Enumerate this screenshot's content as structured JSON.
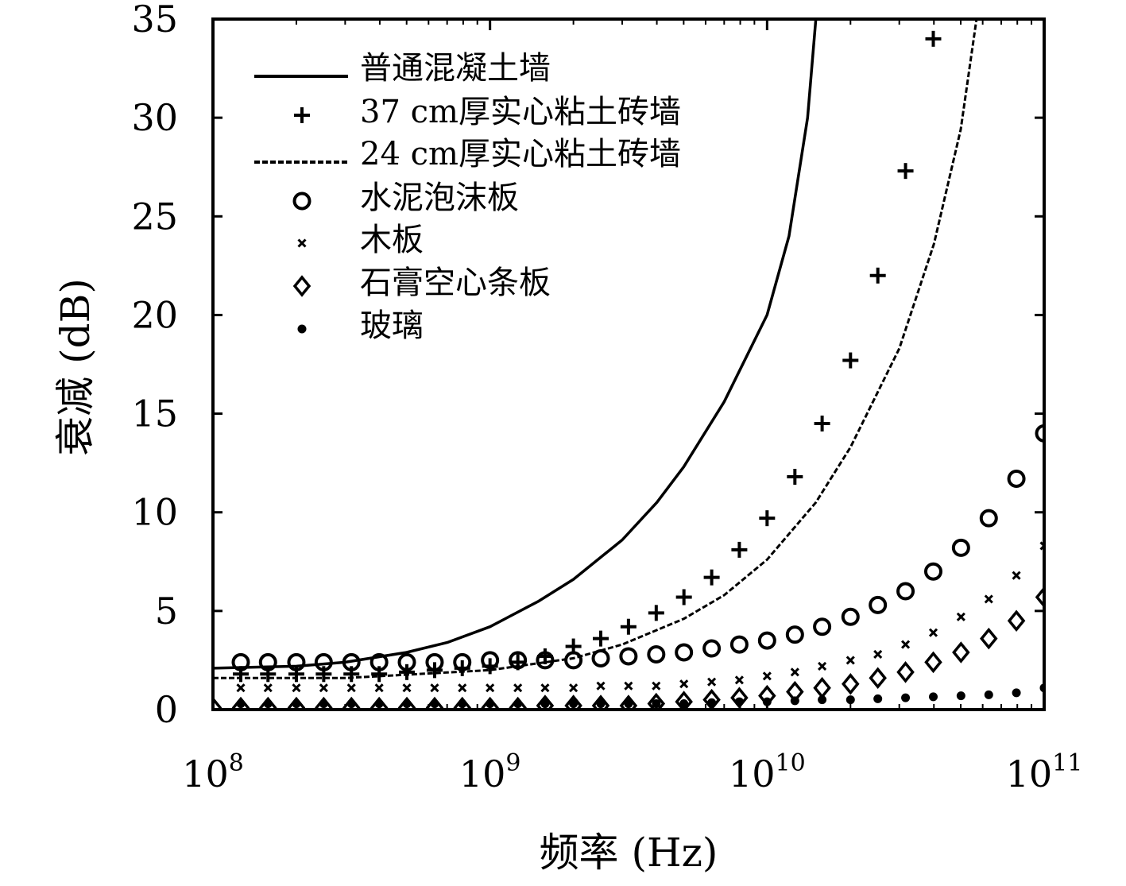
{
  "chart_data": {
    "type": "scatter",
    "xlabel": "频率 (Hz)",
    "ylabel": "衰减 (dB)",
    "xscale": "log",
    "xlim": [
      100000000.0,
      100000000000.0
    ],
    "ylim": [
      0,
      35
    ],
    "x_ticks": [
      {
        "value": 100000000.0,
        "base": "10",
        "exp": "8"
      },
      {
        "value": 1000000000.0,
        "base": "10",
        "exp": "9"
      },
      {
        "value": 10000000000.0,
        "base": "10",
        "exp": "10"
      },
      {
        "value": 100000000000.0,
        "base": "10",
        "exp": "11"
      }
    ],
    "y_ticks": [
      0,
      5,
      10,
      15,
      20,
      25,
      30,
      35
    ],
    "grid": false,
    "legend_position": "top-left",
    "series": [
      {
        "name": "普通混凝土墙",
        "marker": "solid-line",
        "points": [
          [
            100000000.0,
            2.1
          ],
          [
            200000000.0,
            2.2
          ],
          [
            300000000.0,
            2.4
          ],
          [
            500000000.0,
            2.9
          ],
          [
            700000000.0,
            3.4
          ],
          [
            1000000000.0,
            4.2
          ],
          [
            1500000000.0,
            5.5
          ],
          [
            2000000000.0,
            6.6
          ],
          [
            3000000000.0,
            8.6
          ],
          [
            4000000000.0,
            10.5
          ],
          [
            5000000000.0,
            12.3
          ],
          [
            7000000000.0,
            15.6
          ],
          [
            10000000000.0,
            20.0
          ],
          [
            12000000000.0,
            24.0
          ],
          [
            14000000000.0,
            30.0
          ],
          [
            15000000000.0,
            35.0
          ]
        ]
      },
      {
        "name": "37 cm厚实心粘土砖墙",
        "marker": "plus",
        "points": [
          [
            126000000.0,
            1.8
          ],
          [
            158000000.0,
            1.8
          ],
          [
            200000000.0,
            1.8
          ],
          [
            251000000.0,
            1.8
          ],
          [
            316000000.0,
            1.8
          ],
          [
            398000000.0,
            1.8
          ],
          [
            501000000.0,
            1.9
          ],
          [
            631000000.0,
            2.0
          ],
          [
            794000000.0,
            2.1
          ],
          [
            1000000000.0,
            2.2
          ],
          [
            1260000000.0,
            2.4
          ],
          [
            1580000000.0,
            2.7
          ],
          [
            2000000000.0,
            3.2
          ],
          [
            2510000000.0,
            3.6
          ],
          [
            3160000000.0,
            4.2
          ],
          [
            3980000000.0,
            4.9
          ],
          [
            5010000000.0,
            5.7
          ],
          [
            6310000000.0,
            6.7
          ],
          [
            7940000000.0,
            8.1
          ],
          [
            10000000000.0,
            9.7
          ],
          [
            12600000000.0,
            11.8
          ],
          [
            15800000000.0,
            14.5
          ],
          [
            20000000000.0,
            17.7
          ],
          [
            25100000000.0,
            22.0
          ],
          [
            31600000000.0,
            27.3
          ],
          [
            39800000000.0,
            34.0
          ]
        ]
      },
      {
        "name": "24 cm厚实心粘土砖墙",
        "marker": "dashed-line",
        "points": [
          [
            100000000.0,
            1.6
          ],
          [
            300000000.0,
            1.6
          ],
          [
            1000000000.0,
            2.0
          ],
          [
            2000000000.0,
            2.6
          ],
          [
            3000000000.0,
            3.3
          ],
          [
            5000000000.0,
            4.6
          ],
          [
            7000000000.0,
            5.8
          ],
          [
            10000000000.0,
            7.6
          ],
          [
            15000000000.0,
            10.5
          ],
          [
            20000000000.0,
            13.3
          ],
          [
            30000000000.0,
            18.3
          ],
          [
            40000000000.0,
            23.6
          ],
          [
            50000000000.0,
            29.4
          ],
          [
            57000000000.0,
            35.0
          ]
        ]
      },
      {
        "name": "水泥泡沫板",
        "marker": "circle",
        "points": [
          [
            126000000.0,
            2.4
          ],
          [
            158000000.0,
            2.4
          ],
          [
            200000000.0,
            2.4
          ],
          [
            251000000.0,
            2.4
          ],
          [
            316000000.0,
            2.4
          ],
          [
            398000000.0,
            2.4
          ],
          [
            501000000.0,
            2.4
          ],
          [
            631000000.0,
            2.4
          ],
          [
            794000000.0,
            2.4
          ],
          [
            1000000000.0,
            2.5
          ],
          [
            1260000000.0,
            2.5
          ],
          [
            1580000000.0,
            2.5
          ],
          [
            2000000000.0,
            2.5
          ],
          [
            2510000000.0,
            2.6
          ],
          [
            3160000000.0,
            2.7
          ],
          [
            3980000000.0,
            2.8
          ],
          [
            5010000000.0,
            2.9
          ],
          [
            6310000000.0,
            3.1
          ],
          [
            7940000000.0,
            3.3
          ],
          [
            10000000000.0,
            3.5
          ],
          [
            12600000000.0,
            3.8
          ],
          [
            15800000000.0,
            4.2
          ],
          [
            20000000000.0,
            4.7
          ],
          [
            25100000000.0,
            5.3
          ],
          [
            31600000000.0,
            6.0
          ],
          [
            39800000000.0,
            7.0
          ],
          [
            50100000000.0,
            8.2
          ],
          [
            63100000000.0,
            9.7
          ],
          [
            79400000000.0,
            11.7
          ],
          [
            100000000000.0,
            14.0
          ]
        ]
      },
      {
        "name": "木板",
        "marker": "x",
        "points": [
          [
            126000000.0,
            1.1
          ],
          [
            158000000.0,
            1.1
          ],
          [
            200000000.0,
            1.1
          ],
          [
            251000000.0,
            1.1
          ],
          [
            316000000.0,
            1.1
          ],
          [
            398000000.0,
            1.1
          ],
          [
            501000000.0,
            1.1
          ],
          [
            631000000.0,
            1.1
          ],
          [
            794000000.0,
            1.1
          ],
          [
            1000000000.0,
            1.1
          ],
          [
            1260000000.0,
            1.1
          ],
          [
            1580000000.0,
            1.1
          ],
          [
            2000000000.0,
            1.1
          ],
          [
            2510000000.0,
            1.2
          ],
          [
            3160000000.0,
            1.2
          ],
          [
            3980000000.0,
            1.2
          ],
          [
            5010000000.0,
            1.3
          ],
          [
            6310000000.0,
            1.4
          ],
          [
            7940000000.0,
            1.5
          ],
          [
            10000000000.0,
            1.7
          ],
          [
            12600000000.0,
            1.9
          ],
          [
            15800000000.0,
            2.2
          ],
          [
            20000000000.0,
            2.5
          ],
          [
            25100000000.0,
            2.8
          ],
          [
            31600000000.0,
            3.3
          ],
          [
            39800000000.0,
            3.9
          ],
          [
            50100000000.0,
            4.7
          ],
          [
            63100000000.0,
            5.6
          ],
          [
            79400000000.0,
            6.8
          ],
          [
            100000000000.0,
            8.3
          ]
        ]
      },
      {
        "name": "石膏空心条板",
        "marker": "diamond",
        "points": [
          [
            100000000.0,
            0.1
          ],
          [
            126000000.0,
            0.1
          ],
          [
            158000000.0,
            0.1
          ],
          [
            200000000.0,
            0.1
          ],
          [
            251000000.0,
            0.1
          ],
          [
            316000000.0,
            0.1
          ],
          [
            398000000.0,
            0.1
          ],
          [
            501000000.0,
            0.1
          ],
          [
            631000000.0,
            0.1
          ],
          [
            794000000.0,
            0.1
          ],
          [
            1000000000.0,
            0.1
          ],
          [
            1260000000.0,
            0.1
          ],
          [
            1580000000.0,
            0.2
          ],
          [
            2000000000.0,
            0.2
          ],
          [
            2510000000.0,
            0.2
          ],
          [
            3160000000.0,
            0.2
          ],
          [
            3980000000.0,
            0.3
          ],
          [
            5010000000.0,
            0.4
          ],
          [
            6310000000.0,
            0.5
          ],
          [
            7940000000.0,
            0.6
          ],
          [
            10000000000.0,
            0.7
          ],
          [
            12600000000.0,
            0.9
          ],
          [
            15800000000.0,
            1.1
          ],
          [
            20000000000.0,
            1.3
          ],
          [
            25100000000.0,
            1.6
          ],
          [
            31600000000.0,
            1.9
          ],
          [
            39800000000.0,
            2.4
          ],
          [
            50100000000.0,
            2.9
          ],
          [
            63100000000.0,
            3.6
          ],
          [
            79400000000.0,
            4.5
          ],
          [
            100000000000.0,
            5.7
          ]
        ]
      },
      {
        "name": "玻璃",
        "marker": "dot",
        "points": [
          [
            126000000.0,
            0.3
          ],
          [
            158000000.0,
            0.3
          ],
          [
            200000000.0,
            0.3
          ],
          [
            251000000.0,
            0.3
          ],
          [
            316000000.0,
            0.3
          ],
          [
            398000000.0,
            0.3
          ],
          [
            501000000.0,
            0.3
          ],
          [
            631000000.0,
            0.3
          ],
          [
            794000000.0,
            0.3
          ],
          [
            1000000000.0,
            0.3
          ],
          [
            1260000000.0,
            0.3
          ],
          [
            1580000000.0,
            0.3
          ],
          [
            2000000000.0,
            0.3
          ],
          [
            2510000000.0,
            0.3
          ],
          [
            3160000000.0,
            0.3
          ],
          [
            3980000000.0,
            0.3
          ],
          [
            5010000000.0,
            0.3
          ],
          [
            6310000000.0,
            0.35
          ],
          [
            7940000000.0,
            0.4
          ],
          [
            10000000000.0,
            0.4
          ],
          [
            12600000000.0,
            0.45
          ],
          [
            15800000000.0,
            0.5
          ],
          [
            20000000000.0,
            0.5
          ],
          [
            25100000000.0,
            0.55
          ],
          [
            31600000000.0,
            0.6
          ],
          [
            39800000000.0,
            0.65
          ],
          [
            50100000000.0,
            0.7
          ],
          [
            63100000000.0,
            0.75
          ],
          [
            79400000000.0,
            0.85
          ],
          [
            100000000000.0,
            1.1
          ]
        ]
      }
    ]
  }
}
